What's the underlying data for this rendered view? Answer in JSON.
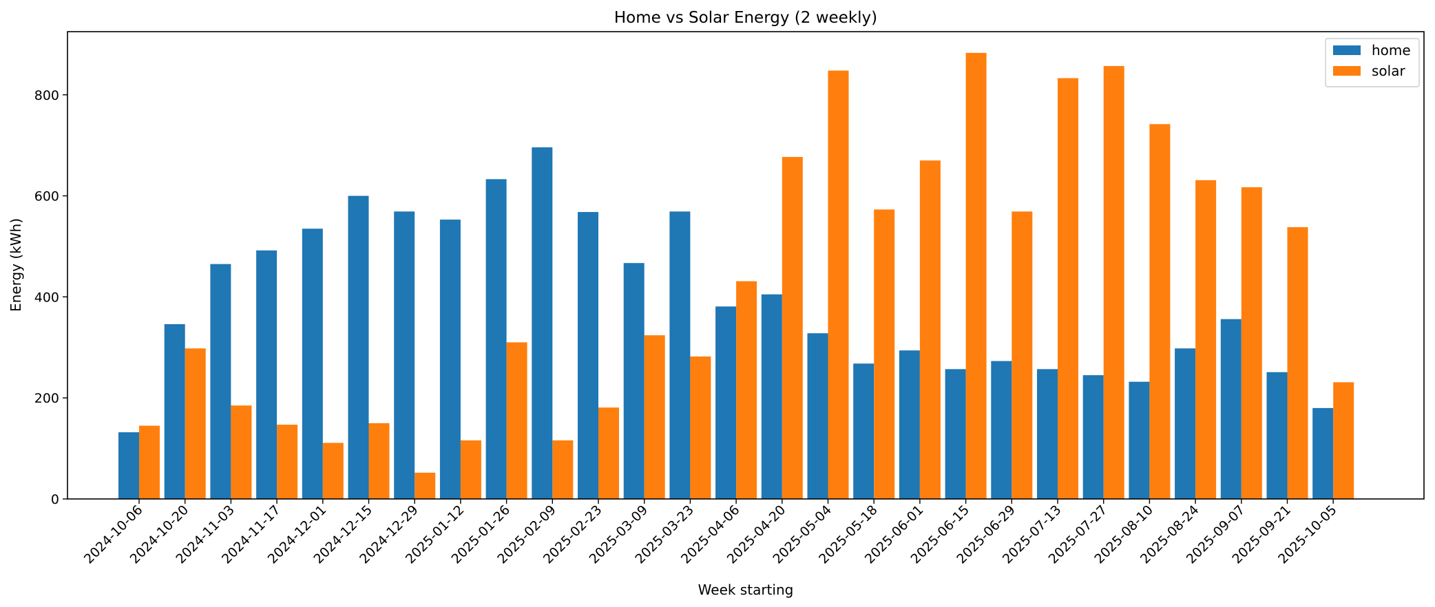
{
  "chart_data": {
    "type": "bar",
    "title": "Home vs Solar Energy (2 weekly)",
    "xlabel": "Week starting",
    "ylabel": "Energy (kWh)",
    "ylim": [
      0,
      925
    ],
    "yticks": [
      0,
      200,
      400,
      600,
      800
    ],
    "legend_position": "top-right",
    "categories": [
      "2024-10-06",
      "2024-10-20",
      "2024-11-03",
      "2024-11-17",
      "2024-12-01",
      "2024-12-15",
      "2024-12-29",
      "2025-01-12",
      "2025-01-26",
      "2025-02-09",
      "2025-02-23",
      "2025-03-09",
      "2025-03-23",
      "2025-04-06",
      "2025-04-20",
      "2025-05-04",
      "2025-05-18",
      "2025-06-01",
      "2025-06-15",
      "2025-06-29",
      "2025-07-13",
      "2025-07-27",
      "2025-08-10",
      "2025-08-24",
      "2025-09-07",
      "2025-09-21",
      "2025-10-05"
    ],
    "series": [
      {
        "name": "home",
        "color": "#1f77b4",
        "values": [
          132,
          346,
          465,
          492,
          535,
          600,
          569,
          553,
          633,
          696,
          568,
          467,
          569,
          381,
          405,
          328,
          268,
          294,
          257,
          273,
          257,
          245,
          232,
          298,
          356,
          251,
          180
        ]
      },
      {
        "name": "solar",
        "color": "#ff7f0e",
        "values": [
          145,
          298,
          185,
          147,
          111,
          150,
          52,
          116,
          310,
          116,
          181,
          324,
          282,
          431,
          677,
          848,
          573,
          670,
          883,
          569,
          833,
          857,
          742,
          631,
          617,
          538,
          231
        ]
      }
    ]
  }
}
